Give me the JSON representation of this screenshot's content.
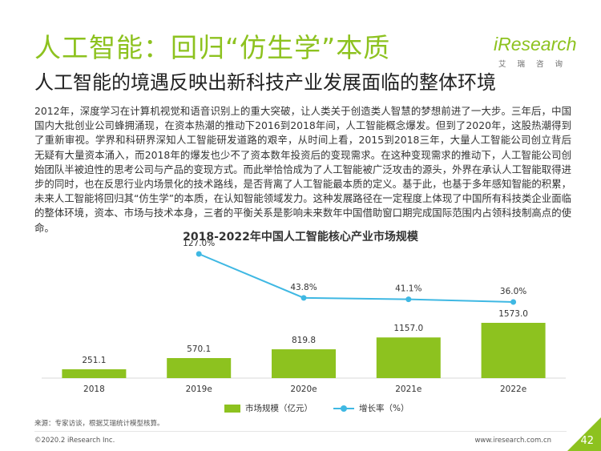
{
  "header": {
    "title": "人工智能：回归“仿生学”本质",
    "subtitle": "人工智能的境遇反映出新科技产业发展面临的整体环境"
  },
  "logo": {
    "brand": "iResearch",
    "sub": "艾瑞咨询"
  },
  "body": {
    "paragraph": "2012年，深度学习在计算机视觉和语音识别上的重大突破，让人类关于创造类人智慧的梦想前进了一大步。三年后，中国国内大批创业公司蜂拥涌现，在资本热潮的推动下2016到2018年间，人工智能概念爆发。但到了2020年，这股热潮得到了重新审视。学界和科研界深知人工智能研发道路的艰辛，从时间上看，2015到2018三年，大量人工智能公司创立背后无疑有大量资本涌入，而2018年的爆发也少不了资本数年投资后的变现需求。在这种变现需求的推动下，人工智能公司创始团队半被迫性的思考公司与产品的变现方式。而此举恰恰成为了人工智能被广泛攻击的源头，外界在承认人工智能取得进步的同时，也在反思行业内场景化的技术路线，是否背离了人工智能最本质的定义。基于此，也基于多年感知智能的积累，未来人工智能将回归其“仿生学”的本质，在认知智能领域发力。这种发展路径在一定程度上体现了中国所有科技类企业面临的整体环境，资本、市场与技术本身，三者的平衡关系是影响未来数年中国借助窗口期完成国际范围内占领科技制高点的使命。"
  },
  "chart_data": {
    "type": "bar",
    "title": "2018-2022年中国人工智能核心产业市场规模",
    "categories": [
      "2018",
      "2019e",
      "2020e",
      "2021e",
      "2022e"
    ],
    "series": [
      {
        "name": "市场规模（亿元）",
        "type": "bar",
        "values": [
          251.1,
          570.1,
          819.8,
          1157.0,
          1573.0
        ],
        "labels": [
          "251.1",
          "570.1",
          "819.8",
          "1157.0",
          "1573.0"
        ],
        "color": "#8dc21f"
      },
      {
        "name": "增长率（%）",
        "type": "line",
        "values": [
          null,
          127.0,
          43.8,
          41.1,
          36.0
        ],
        "labels": [
          "",
          "127.0%",
          "43.8%",
          "41.1%",
          "36.0%"
        ],
        "color": "#3fb8e3"
      }
    ]
  },
  "footer": {
    "source": "来源：专家访谈，根据艾瑞统计模型核算。",
    "copyright": "©2020.2 iResearch Inc.",
    "website": "www.iresearch.com.cn",
    "page": "42"
  },
  "colors": {
    "accent": "#8dc21f",
    "line": "#3fb8e3"
  }
}
